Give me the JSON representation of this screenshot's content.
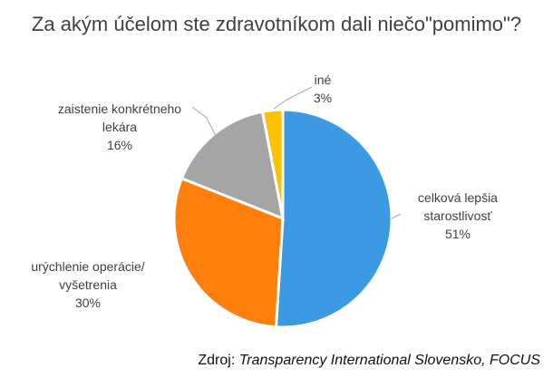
{
  "title": "Za akým účelom ste zdravotníkom dali niečo\"pomimo\"?",
  "source": {
    "prefix": "Zdroj: ",
    "text": "Transparency International Slovensko, FOCUS"
  },
  "chart_data": {
    "type": "pie",
    "title": "Za akým účelom ste zdravotníkom dali niečo\"pomimo\"?",
    "slices": [
      {
        "label_lines": [
          "celková lepšia",
          "starostlivosť"
        ],
        "pct_label": "51%",
        "value": 51,
        "color": "#3B9AE1"
      },
      {
        "label_lines": [
          "urýchlenie operácie/",
          "vyšetrenia"
        ],
        "pct_label": "30%",
        "value": 30,
        "color": "#FF7F0E"
      },
      {
        "label_lines": [
          "zaistenie konkrétneho",
          "lekára"
        ],
        "pct_label": "16%",
        "value": 16,
        "color": "#A5A5A5"
      },
      {
        "label_lines": [
          "iné"
        ],
        "pct_label": "3%",
        "value": 3,
        "color": "#FFC000"
      }
    ]
  }
}
